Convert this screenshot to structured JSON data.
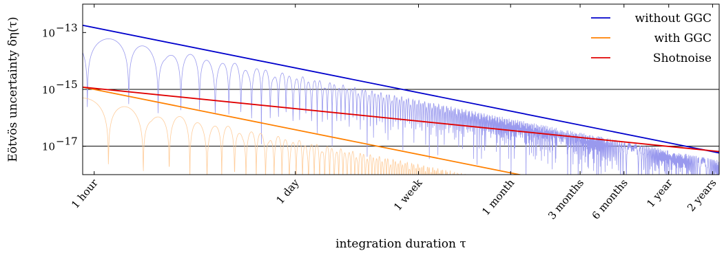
{
  "chart_data": {
    "type": "line",
    "title": "",
    "xlabel": "integration duration τ",
    "ylabel": "Eötvös uncertainty δη(τ)",
    "x_scale": "log",
    "y_scale": "log",
    "x_unit": "seconds",
    "xlim": [
      3000,
      70000000
    ],
    "ylim": [
      1e-18,
      1e-12
    ],
    "x_ticks": [
      {
        "value": 3600,
        "label": "1 hour"
      },
      {
        "value": 86400,
        "label": "1 day"
      },
      {
        "value": 604800,
        "label": "1 week"
      },
      {
        "value": 2592000,
        "label": "1 month"
      },
      {
        "value": 7776000,
        "label": "3 months"
      },
      {
        "value": 15552000,
        "label": "6 months"
      },
      {
        "value": 31536000,
        "label": "1 year"
      },
      {
        "value": 63072000,
        "label": "2 years"
      }
    ],
    "y_ticks": [
      {
        "value": 1e-13,
        "label": "10",
        "exp": "−13"
      },
      {
        "value": 1e-15,
        "label": "10",
        "exp": "−15"
      },
      {
        "value": 1e-17,
        "label": "10",
        "exp": "−17"
      }
    ],
    "reference_lines": [
      1e-15,
      1e-17
    ],
    "legend_position": "top-right",
    "series": [
      {
        "name": "without GGC",
        "color": "#0000cc",
        "x": [
          3000,
          70000000
        ],
        "y": [
          1.8e-13,
          5.8e-18
        ]
      },
      {
        "name": "with GGC",
        "color": "#ff8000",
        "x": [
          3000,
          70000000
        ],
        "y": [
          1.2e-15,
          3.9e-20
        ]
      },
      {
        "name": "Shotnoise",
        "color": "#e00000",
        "x": [
          3000,
          70000000
        ],
        "y": [
          1.2e-15,
          6.5e-18
        ]
      }
    ],
    "oscillating_traces": [
      {
        "of": "without GGC",
        "color": "#9999ee",
        "peak_factor": 0.55,
        "min_y": 1e-18
      },
      {
        "of": "with GGC",
        "color": "#ffcc99",
        "peak_factor": 0.45,
        "min_y": 1e-18
      }
    ]
  }
}
